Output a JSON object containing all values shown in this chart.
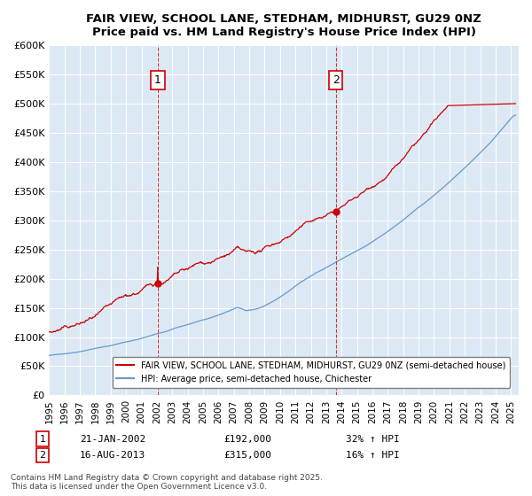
{
  "title": "FAIR VIEW, SCHOOL LANE, STEDHAM, MIDHURST, GU29 0NZ",
  "subtitle": "Price paid vs. HM Land Registry's House Price Index (HPI)",
  "ylim": [
    0,
    600000
  ],
  "yticks": [
    0,
    50000,
    100000,
    150000,
    200000,
    250000,
    300000,
    350000,
    400000,
    450000,
    500000,
    550000,
    600000
  ],
  "xlim_start": 1995.0,
  "xlim_end": 2025.5,
  "background_color": "#dce9f5",
  "plot_bg_color": "#dce9f5",
  "red_line_color": "#cc0000",
  "blue_line_color": "#6699cc",
  "marker1_date_x": 2002.06,
  "marker1_label": "1",
  "marker1_y": 192000,
  "marker2_date_x": 2013.62,
  "marker2_label": "2",
  "marker2_y": 315000,
  "annotation1_date": "21-JAN-2002",
  "annotation1_price": "£192,000",
  "annotation1_hpi": "32% ↑ HPI",
  "annotation2_date": "16-AUG-2013",
  "annotation2_price": "£315,000",
  "annotation2_hpi": "16% ↑ HPI",
  "legend_label_red": "FAIR VIEW, SCHOOL LANE, STEDHAM, MIDHURST, GU29 0NZ (semi-detached house)",
  "legend_label_blue": "HPI: Average price, semi-detached house, Chichester",
  "footer": "Contains HM Land Registry data © Crown copyright and database right 2025.\nThis data is licensed under the Open Government Licence v3.0.",
  "xticks": [
    1995,
    1996,
    1997,
    1998,
    1999,
    2000,
    2001,
    2002,
    2003,
    2004,
    2005,
    2006,
    2007,
    2008,
    2009,
    2010,
    2011,
    2012,
    2013,
    2014,
    2015,
    2016,
    2017,
    2018,
    2019,
    2020,
    2021,
    2022,
    2023,
    2024,
    2025
  ]
}
